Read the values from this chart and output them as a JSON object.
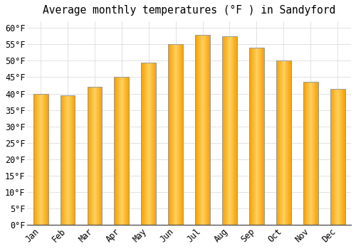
{
  "title": "Average monthly temperatures (°F ) in Sandyford",
  "months": [
    "Jan",
    "Feb",
    "Mar",
    "Apr",
    "May",
    "Jun",
    "Jul",
    "Aug",
    "Sep",
    "Oct",
    "Nov",
    "Dec"
  ],
  "values": [
    40,
    39.5,
    42,
    45,
    49.5,
    55,
    58,
    57.5,
    54,
    50,
    43.5,
    41.5
  ],
  "bar_color_center": "#FFD060",
  "bar_color_edge": "#F5A000",
  "bar_outline_color": "#999999",
  "background_color": "#FFFFFF",
  "ylim": [
    0,
    62
  ],
  "yticks": [
    0,
    5,
    10,
    15,
    20,
    25,
    30,
    35,
    40,
    45,
    50,
    55,
    60
  ],
  "grid_color": "#DDDDDD",
  "title_fontsize": 10.5,
  "tick_fontsize": 8.5,
  "bar_width": 0.55
}
